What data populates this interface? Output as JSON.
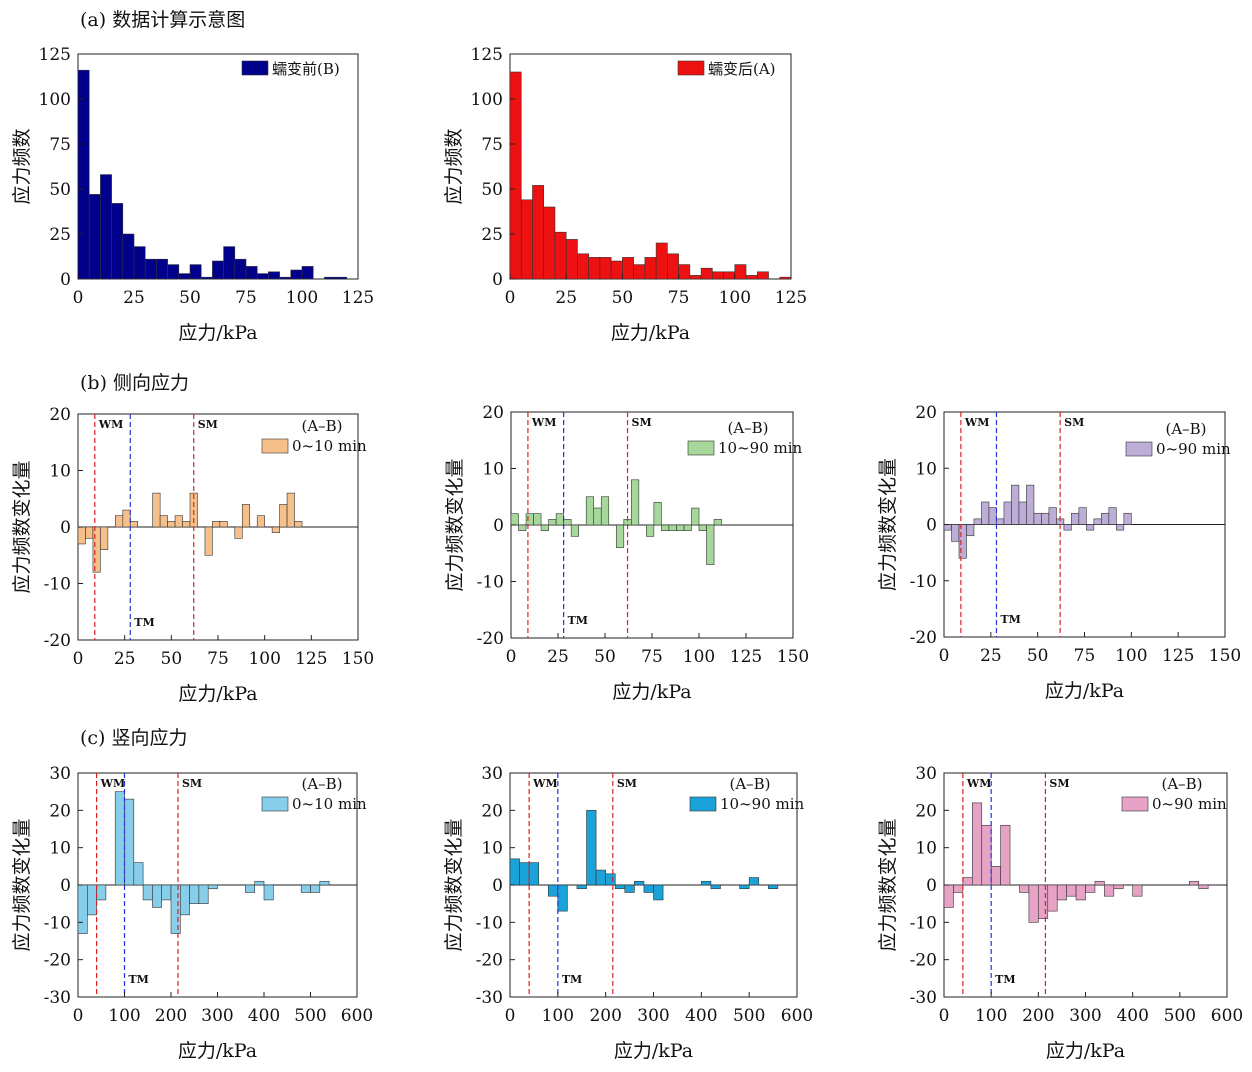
{
  "sections": {
    "a": "(a) 数据计算示意图",
    "b": "(b) 侧向应力",
    "c": "(c) 竖向应力"
  },
  "chart_data": [
    {
      "id": "a1",
      "type": "bar",
      "xlabel": "应力/kPa",
      "ylabel": "应力频数",
      "xlim": [
        0,
        125
      ],
      "ylim": [
        0,
        125
      ],
      "xticks": [
        0,
        25,
        50,
        75,
        100,
        125
      ],
      "yticks": [
        0,
        25,
        50,
        75,
        100,
        125
      ],
      "bin_width": 5,
      "color": "#00008b",
      "legend": [
        {
          "name": "蠕变前(B)",
          "color": "#00008b"
        }
      ],
      "x": [
        2.5,
        7.5,
        12.5,
        17.5,
        22.5,
        27.5,
        32.5,
        37.5,
        42.5,
        47.5,
        52.5,
        57.5,
        62.5,
        67.5,
        72.5,
        77.5,
        82.5,
        87.5,
        92.5,
        97.5,
        102.5,
        107.5,
        112.5,
        117.5
      ],
      "values": [
        116,
        47,
        58,
        42,
        25,
        18,
        11,
        11,
        8,
        3,
        8,
        1,
        10,
        18,
        11,
        7,
        3,
        4,
        1,
        5,
        7,
        0,
        1,
        1
      ]
    },
    {
      "id": "a2",
      "type": "bar",
      "xlabel": "应力/kPa",
      "ylabel": "应力频数",
      "xlim": [
        0,
        125
      ],
      "ylim": [
        0,
        125
      ],
      "xticks": [
        0,
        25,
        50,
        75,
        100,
        125
      ],
      "yticks": [
        0,
        25,
        50,
        75,
        100,
        125
      ],
      "bin_width": 5,
      "color": "#ee1111",
      "legend": [
        {
          "name": "蠕变后(A)",
          "color": "#ee1111"
        }
      ],
      "x": [
        2.5,
        7.5,
        12.5,
        17.5,
        22.5,
        27.5,
        32.5,
        37.5,
        42.5,
        47.5,
        52.5,
        57.5,
        62.5,
        67.5,
        72.5,
        77.5,
        82.5,
        87.5,
        92.5,
        97.5,
        102.5,
        107.5,
        112.5,
        117.5,
        122.5
      ],
      "values": [
        115,
        44,
        52,
        40,
        26,
        22,
        14,
        12,
        12,
        10,
        12,
        8,
        12,
        20,
        14,
        8,
        2,
        6,
        4,
        4,
        8,
        2,
        4,
        0,
        1
      ]
    },
    {
      "id": "b1",
      "type": "bar",
      "xlabel": "应力/kPa",
      "ylabel": "应力频数变化量",
      "xlim": [
        0,
        150
      ],
      "ylim": [
        -20,
        20
      ],
      "xticks": [
        0,
        25,
        50,
        75,
        100,
        125,
        150
      ],
      "yticks": [
        -20,
        -10,
        0,
        10,
        20
      ],
      "bin_width": 4,
      "color": "#f7c08a",
      "legend": [
        {
          "name": "(A–B)",
          "color": ""
        },
        {
          "name": "0~10 min",
          "color": "#f7c08a"
        }
      ],
      "lines": [
        {
          "label": "WM",
          "x": 9,
          "color": "red",
          "label_pos": "top"
        },
        {
          "label": "TM",
          "x": 28,
          "color": "blue",
          "label_pos": "bottom"
        },
        {
          "label": "SM",
          "x": 62,
          "color": "red",
          "label_pos": "top"
        }
      ],
      "x": [
        2,
        6,
        10,
        14,
        22,
        26,
        30,
        42,
        46,
        50,
        54,
        58,
        62,
        70,
        74,
        78,
        86,
        90,
        98,
        106,
        110,
        114,
        118,
        122
      ],
      "values": [
        -3,
        -2,
        -8,
        -4,
        2,
        3,
        1,
        6,
        2,
        1,
        2,
        1,
        6,
        -5,
        1,
        1,
        -2,
        4,
        2,
        -1,
        4,
        6,
        1,
        0
      ]
    },
    {
      "id": "b2",
      "type": "bar",
      "xlabel": "应力/kPa",
      "ylabel": "应力频数变化量",
      "xlim": [
        0,
        150
      ],
      "ylim": [
        -20,
        20
      ],
      "xticks": [
        0,
        25,
        50,
        75,
        100,
        125,
        150
      ],
      "yticks": [
        -20,
        -10,
        0,
        10,
        20
      ],
      "bin_width": 4,
      "color": "#a6d89c",
      "legend": [
        {
          "name": "(A–B)",
          "color": ""
        },
        {
          "name": "10~90 min",
          "color": "#a6d89c"
        }
      ],
      "lines": [
        {
          "label": "WM",
          "x": 9,
          "color": "red",
          "label_pos": "top"
        },
        {
          "label": "TM",
          "x": 28,
          "color": "blue",
          "label_pos": "bottom"
        },
        {
          "label": "SM",
          "x": 62,
          "color": "red",
          "label_pos": "top"
        }
      ],
      "x": [
        2,
        6,
        10,
        14,
        18,
        22,
        26,
        30,
        34,
        38,
        42,
        46,
        50,
        54,
        58,
        62,
        66,
        70,
        74,
        78,
        82,
        86,
        90,
        94,
        98,
        102,
        106,
        110,
        114,
        118,
        122
      ],
      "values": [
        2,
        -1,
        2,
        2,
        -1,
        1,
        2,
        1,
        -2,
        0,
        5,
        3,
        5,
        0,
        -4,
        1,
        8,
        0,
        -2,
        4,
        -1,
        -1,
        -1,
        -1,
        3,
        -1,
        -7,
        1,
        0,
        0,
        0
      ]
    },
    {
      "id": "b3",
      "type": "bar",
      "xlabel": "应力/kPa",
      "ylabel": "应力频数变化量",
      "xlim": [
        0,
        150
      ],
      "ylim": [
        -20,
        20
      ],
      "xticks": [
        0,
        25,
        50,
        75,
        100,
        125,
        150
      ],
      "yticks": [
        -20,
        -10,
        0,
        10,
        20
      ],
      "bin_width": 4,
      "color": "#bcaed6",
      "legend": [
        {
          "name": "(A–B)",
          "color": ""
        },
        {
          "name": "0~90 min",
          "color": "#bcaed6"
        }
      ],
      "lines": [
        {
          "label": "WM",
          "x": 9,
          "color": "red",
          "label_pos": "top"
        },
        {
          "label": "TM",
          "x": 28,
          "color": "blue",
          "label_pos": "bottom"
        },
        {
          "label": "SM",
          "x": 62,
          "color": "red",
          "label_pos": "top"
        }
      ],
      "x": [
        2,
        6,
        10,
        14,
        18,
        22,
        26,
        30,
        34,
        38,
        42,
        46,
        50,
        54,
        58,
        62,
        66,
        70,
        74,
        78,
        82,
        86,
        90,
        94,
        98,
        102,
        106,
        110,
        114,
        118,
        122
      ],
      "values": [
        -1,
        -3,
        -6,
        -2,
        1,
        4,
        3,
        1,
        4,
        7,
        4,
        7,
        2,
        2,
        3,
        1,
        -1,
        2,
        3,
        -1,
        1,
        2,
        3,
        -1,
        2,
        0,
        0,
        0,
        0,
        0,
        0
      ]
    },
    {
      "id": "c1",
      "type": "bar",
      "xlabel": "应力/kPa",
      "ylabel": "应力频数变化量",
      "xlim": [
        0,
        600
      ],
      "ylim": [
        -30,
        30
      ],
      "xticks": [
        0,
        100,
        200,
        300,
        400,
        500,
        600
      ],
      "yticks": [
        -30,
        -20,
        -10,
        0,
        10,
        20,
        30
      ],
      "bin_width": 20,
      "color": "#87ceeb",
      "legend": [
        {
          "name": "(A–B)",
          "color": ""
        },
        {
          "name": "0~10 min",
          "color": "#87ceeb"
        }
      ],
      "lines": [
        {
          "label": "WM",
          "x": 40,
          "color": "red",
          "label_pos": "top"
        },
        {
          "label": "TM",
          "x": 100,
          "color": "blue",
          "label_pos": "bottom"
        },
        {
          "label": "SM",
          "x": 215,
          "color": "red",
          "label_pos": "top"
        }
      ],
      "x": [
        10,
        30,
        50,
        70,
        90,
        110,
        130,
        150,
        170,
        190,
        210,
        230,
        250,
        270,
        290,
        310,
        330,
        350,
        370,
        390,
        410,
        430,
        450,
        470,
        490,
        510,
        530
      ],
      "values": [
        -13,
        -8,
        -4,
        0,
        25,
        23,
        6,
        -4,
        -6,
        -4,
        -13,
        -8,
        -5,
        -5,
        -1,
        0,
        0,
        0,
        -2,
        1,
        -4,
        0,
        0,
        0,
        -2,
        -2,
        1
      ]
    },
    {
      "id": "c2",
      "type": "bar",
      "xlabel": "应力/kPa",
      "ylabel": "应力频数变化量",
      "xlim": [
        0,
        600
      ],
      "ylim": [
        -30,
        30
      ],
      "xticks": [
        0,
        100,
        200,
        300,
        400,
        500,
        600
      ],
      "yticks": [
        -30,
        -20,
        -10,
        0,
        10,
        20,
        30
      ],
      "bin_width": 20,
      "color": "#1aa3d9",
      "legend": [
        {
          "name": "(A–B)",
          "color": ""
        },
        {
          "name": "10~90 min",
          "color": "#1aa3d9"
        }
      ],
      "lines": [
        {
          "label": "WM",
          "x": 40,
          "color": "red",
          "label_pos": "top"
        },
        {
          "label": "TM",
          "x": 100,
          "color": "blue",
          "label_pos": "bottom"
        },
        {
          "label": "SM",
          "x": 215,
          "color": "red",
          "label_pos": "top"
        }
      ],
      "x": [
        10,
        30,
        50,
        70,
        90,
        110,
        130,
        150,
        170,
        190,
        210,
        230,
        250,
        270,
        290,
        310,
        330,
        350,
        370,
        390,
        410,
        430,
        450,
        470,
        490,
        510,
        530,
        550
      ],
      "values": [
        7,
        6,
        6,
        0,
        -3,
        -7,
        0,
        -1,
        20,
        4,
        3,
        -1,
        -2,
        1,
        -2,
        -4,
        0,
        0,
        0,
        0,
        1,
        -1,
        0,
        0,
        -1,
        2,
        0,
        -1
      ]
    },
    {
      "id": "c3",
      "type": "bar",
      "xlabel": "应力/kPa",
      "ylabel": "应力频数变化量",
      "xlim": [
        0,
        600
      ],
      "ylim": [
        -30,
        30
      ],
      "xticks": [
        0,
        100,
        200,
        300,
        400,
        500,
        600
      ],
      "yticks": [
        -30,
        -20,
        -10,
        0,
        10,
        20,
        30
      ],
      "bin_width": 20,
      "color": "#e7a3c6",
      "legend": [
        {
          "name": "(A–B)",
          "color": ""
        },
        {
          "name": "0~90 min",
          "color": "#e7a3c6"
        }
      ],
      "lines": [
        {
          "label": "WM",
          "x": 40,
          "color": "red",
          "label_pos": "top"
        },
        {
          "label": "TM",
          "x": 100,
          "color": "blue",
          "label_pos": "bottom"
        },
        {
          "label": "SM",
          "x": 215,
          "color": "red",
          "label_pos": "top"
        }
      ],
      "x": [
        10,
        30,
        50,
        70,
        90,
        110,
        130,
        150,
        170,
        190,
        210,
        230,
        250,
        270,
        290,
        310,
        330,
        350,
        370,
        390,
        410,
        430,
        450,
        470,
        490,
        510,
        530,
        550
      ],
      "values": [
        -6,
        -2,
        2,
        22,
        16,
        5,
        16,
        0,
        -2,
        -10,
        -9,
        -7,
        -4,
        -3,
        -4,
        -2,
        1,
        -3,
        -1,
        0,
        -3,
        0,
        0,
        0,
        0,
        0,
        1,
        -1
      ]
    }
  ]
}
